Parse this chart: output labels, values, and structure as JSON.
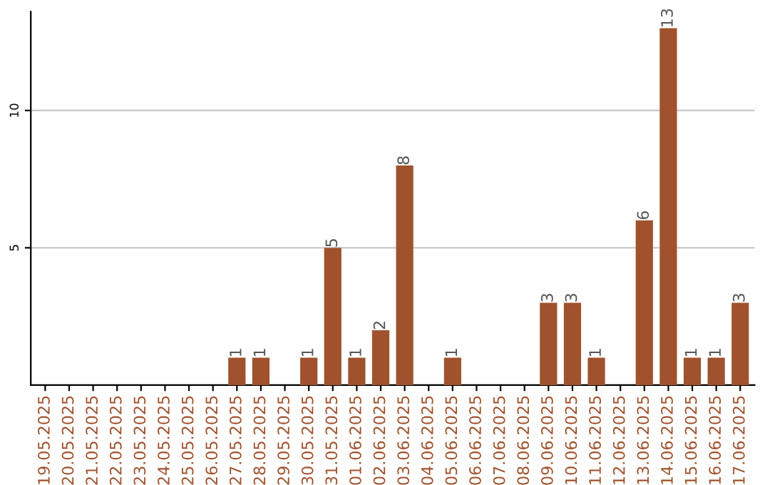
{
  "chart_data": {
    "type": "bar",
    "categories": [
      "19.05.2025",
      "20.05.2025",
      "21.05.2025",
      "22.05.2025",
      "23.05.2025",
      "24.05.2025",
      "25.05.2025",
      "26.05.2025",
      "27.05.2025",
      "28.05.2025",
      "29.05.2025",
      "30.05.2025",
      "31.05.2025",
      "01.06.2025",
      "02.06.2025",
      "03.06.2025",
      "04.06.2025",
      "05.06.2025",
      "06.06.2025",
      "07.06.2025",
      "08.06.2025",
      "09.06.2025",
      "10.06.2025",
      "11.06.2025",
      "12.06.2025",
      "13.06.2025",
      "14.06.2025",
      "15.06.2025",
      "16.06.2025",
      "17.06.2025"
    ],
    "values": [
      0,
      0,
      0,
      0,
      0,
      0,
      0,
      0,
      1,
      1,
      0,
      1,
      5,
      1,
      2,
      8,
      0,
      1,
      0,
      0,
      0,
      3,
      3,
      1,
      0,
      6,
      13,
      1,
      1,
      3
    ],
    "value_labels": [
      null,
      null,
      null,
      null,
      null,
      null,
      null,
      null,
      "1",
      "1",
      null,
      "1",
      "5",
      "1",
      "2",
      "8",
      null,
      "1",
      null,
      null,
      null,
      "3",
      "3",
      "1",
      null,
      "6",
      "13",
      "1",
      "1",
      "3"
    ],
    "color": "#a0522d",
    "ylim": [
      0,
      13.6
    ],
    "yticks": [
      5,
      10
    ],
    "grid": "y"
  }
}
